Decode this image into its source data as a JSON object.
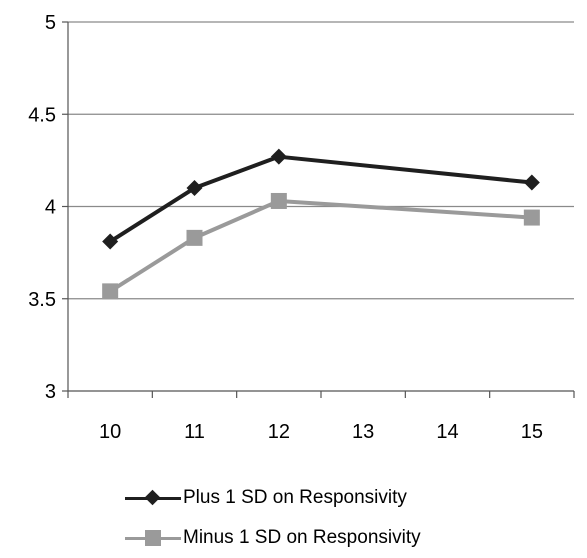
{
  "chart_data": {
    "type": "line",
    "x": [
      10,
      11,
      12,
      15
    ],
    "xticks": [
      "10",
      "11",
      "12",
      "13",
      "14",
      "15"
    ],
    "yticks": [
      "3",
      "3.5",
      "4",
      "4.5",
      "5"
    ],
    "xlim": [
      9.5,
      15.5
    ],
    "ylim": [
      3,
      5
    ],
    "grid": "horizontal",
    "legend_position": "bottom",
    "title": "",
    "xlabel": "",
    "ylabel": "",
    "series": [
      {
        "name": "Plus 1 SD on Responsivity",
        "values": [
          3.81,
          4.1,
          4.27,
          4.13
        ],
        "color": "#1f1f1f",
        "marker": "diamond"
      },
      {
        "name": "Minus 1 SD on Responsivity",
        "values": [
          3.54,
          3.83,
          4.03,
          3.94
        ],
        "color": "#9a9a9a",
        "marker": "square"
      }
    ]
  }
}
